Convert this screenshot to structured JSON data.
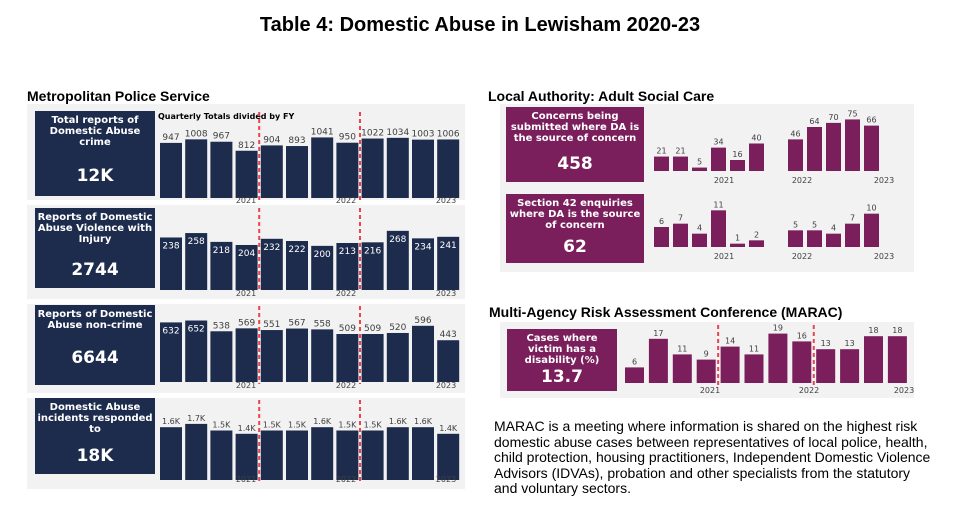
{
  "title": "Table 4: Domestic Abuse in Lewisham 2020-23",
  "sections": {
    "met": "Metropolitan Police Service",
    "asc": "Local Authority: Adult Social Care",
    "marac": "Multi-Agency Risk Assessment Conference (MARAC)"
  },
  "met_subtitle": "Quarterly Totals divided by FY",
  "marac_description": "MARAC is a meeting where information is shared on the highest risk domestic abuse cases between representatives of local police, health, child protection, housing practitioners, Independent Domestic Violence Advisors (IDVAs), probation and other specialists from the statutory and voluntary sectors.",
  "colors": {
    "navy": "#1d2b4d",
    "plum": "#7a1f5c",
    "divider": "#e8454f",
    "panel": "#f2f2f2"
  },
  "kpis": {
    "met1": {
      "label": "Total reports of Domestic Abuse crime",
      "value": "12K"
    },
    "met2": {
      "label": "Reports of Domestic Abuse Violence with Injury",
      "value": "2744"
    },
    "met3": {
      "label": "Reports of Domestic Abuse non-crime",
      "value": "6644"
    },
    "met4": {
      "label": "Domestic Abuse incidents responded to",
      "value": "18K"
    },
    "asc1": {
      "label": "Concerns being submitted where DA is the source of concern",
      "value": "458"
    },
    "asc2": {
      "label": "Section 42 enquiries where DA is the source of concern",
      "value": "62"
    },
    "marac1": {
      "label": "Cases where victim has a disability (%)",
      "value": "13.7"
    }
  },
  "chart_data": [
    {
      "id": "met1",
      "type": "bar",
      "series": [
        {
          "values": [
            947,
            1008,
            967,
            812,
            904,
            893,
            1041,
            950,
            1022,
            1034,
            1003,
            1006
          ]
        }
      ],
      "data_labels": [
        "947",
        "1008",
        "967",
        "812",
        "904",
        "893",
        "1041",
        "950",
        "1022",
        "1034",
        "1003",
        "1006"
      ],
      "year_labels": [
        "2021",
        "2022",
        "2023"
      ],
      "fy_dividers_after": [
        3,
        7
      ],
      "ylim": [
        0,
        1100
      ]
    },
    {
      "id": "met2",
      "type": "bar",
      "series": [
        {
          "values": [
            238,
            258,
            218,
            204,
            232,
            222,
            200,
            213,
            216,
            268,
            234,
            241
          ]
        }
      ],
      "data_labels": [
        "238",
        "258",
        "218",
        "204",
        "232",
        "222",
        "200",
        "213",
        "216",
        "268",
        "234",
        "241"
      ],
      "year_labels": [
        "2021",
        "2022",
        "2023"
      ],
      "fy_dividers_after": [
        3,
        7
      ],
      "ylim": [
        0,
        290
      ]
    },
    {
      "id": "met3",
      "type": "bar",
      "series": [
        {
          "values": [
            632,
            652,
            538,
            569,
            551,
            567,
            558,
            509,
            509,
            520,
            596,
            443
          ]
        }
      ],
      "data_labels": [
        "632",
        "652",
        "538",
        "569",
        "551",
        "567",
        "558",
        "509",
        "509",
        "520",
        "596",
        "443"
      ],
      "year_labels": [
        "2021",
        "2022",
        "2023"
      ],
      "fy_dividers_after": [
        3,
        7
      ],
      "ylim": [
        0,
        700
      ]
    },
    {
      "id": "met4",
      "type": "bar",
      "series": [
        {
          "values": [
            1600,
            1700,
            1500,
            1400,
            1500,
            1500,
            1600,
            1500,
            1500,
            1600,
            1600,
            1400
          ]
        }
      ],
      "data_labels": [
        "1.6K",
        "1.7K",
        "1.5K",
        "1.4K",
        "1.5K",
        "1.5K",
        "1.6K",
        "1.5K",
        "1.5K",
        "1.6K",
        "1.6K",
        "1.4K"
      ],
      "year_labels": [
        "2021",
        "2022",
        "2023"
      ],
      "fy_dividers_after": [
        3,
        7
      ],
      "ylim": [
        0,
        2000
      ]
    },
    {
      "id": "asc1",
      "type": "bar",
      "series": [
        {
          "values": [
            21,
            21,
            5,
            34,
            16,
            40,
            46,
            64,
            70,
            75,
            66
          ]
        }
      ],
      "data_labels": [
        "21",
        "21",
        "5",
        "34",
        "16",
        "40",
        "46",
        "64",
        "70",
        "75",
        "66"
      ],
      "groups": [
        6,
        5
      ],
      "year_labels": [
        "2021",
        "2022",
        "2023"
      ],
      "ylim": [
        0,
        80
      ]
    },
    {
      "id": "asc2",
      "type": "bar",
      "series": [
        {
          "values": [
            6,
            7,
            4,
            11,
            1,
            2,
            5,
            5,
            4,
            7,
            10
          ]
        }
      ],
      "data_labels": [
        "6",
        "7",
        "4",
        "11",
        "1",
        "2",
        "5",
        "5",
        "4",
        "7",
        "10"
      ],
      "groups": [
        6,
        5
      ],
      "year_labels": [
        "2021",
        "2022",
        "2023"
      ],
      "ylim": [
        0,
        12
      ]
    },
    {
      "id": "marac1",
      "type": "bar",
      "series": [
        {
          "values": [
            6,
            17,
            11,
            9,
            14,
            11,
            19,
            16,
            13,
            13,
            18,
            18
          ]
        }
      ],
      "data_labels": [
        "6",
        "17",
        "11",
        "9",
        "14",
        "11",
        "19",
        "16",
        "13",
        "13",
        "18",
        "18"
      ],
      "year_labels": [
        "2021",
        "2022",
        "2023"
      ],
      "fy_dividers_after": [
        3,
        7
      ],
      "ylim": [
        0,
        20
      ]
    }
  ]
}
